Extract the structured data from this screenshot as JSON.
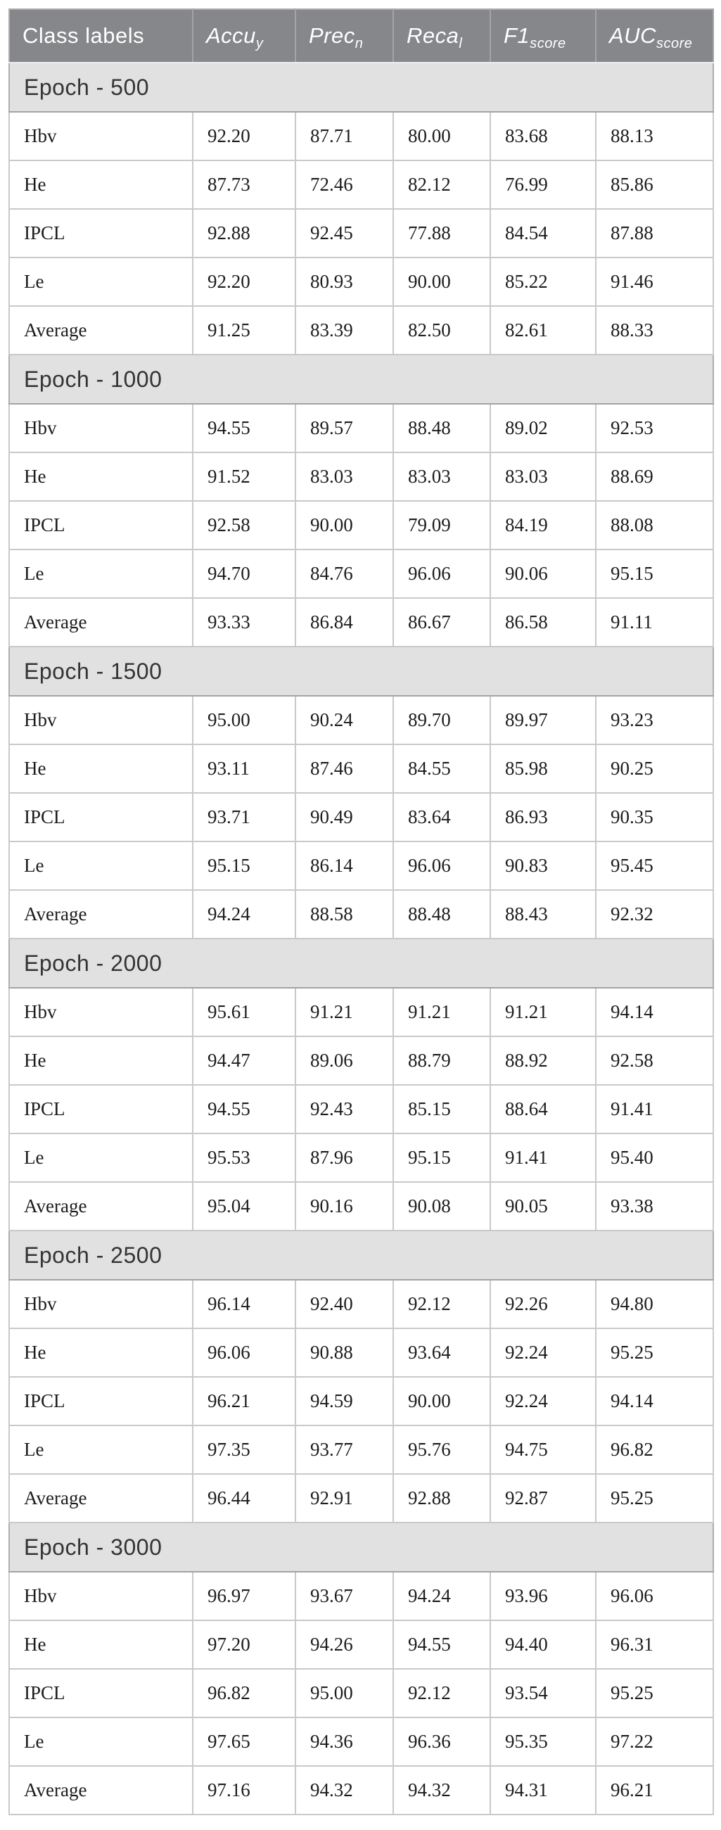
{
  "colors": {
    "header_bg": "#85878a",
    "header_text": "#ffffff",
    "section_bg": "#e1e1e1",
    "row_bg": "#ffffff",
    "border_light": "#c9c9c9",
    "border_dark": "#a3a3a3",
    "data_text": "#1c1c1c",
    "section_text": "#343434"
  },
  "table": {
    "columns": [
      {
        "label": "Class labels"
      },
      {
        "base": "Accu",
        "sub": "y"
      },
      {
        "base": "Prec",
        "sub": "n"
      },
      {
        "base": "Reca",
        "sub": "l"
      },
      {
        "base": "F1",
        "sub": "score"
      },
      {
        "base": "AUC",
        "sub": "score"
      }
    ],
    "sections": [
      {
        "title": "Epoch - 500",
        "rows": [
          {
            "label": "Hbv",
            "values": [
              "92.20",
              "87.71",
              "80.00",
              "83.68",
              "88.13"
            ]
          },
          {
            "label": "He",
            "values": [
              "87.73",
              "72.46",
              "82.12",
              "76.99",
              "85.86"
            ]
          },
          {
            "label": "IPCL",
            "values": [
              "92.88",
              "92.45",
              "77.88",
              "84.54",
              "87.88"
            ]
          },
          {
            "label": "Le",
            "values": [
              "92.20",
              "80.93",
              "90.00",
              "85.22",
              "91.46"
            ]
          },
          {
            "label": "Average",
            "values": [
              "91.25",
              "83.39",
              "82.50",
              "82.61",
              "88.33"
            ]
          }
        ]
      },
      {
        "title": "Epoch - 1000",
        "rows": [
          {
            "label": "Hbv",
            "values": [
              "94.55",
              "89.57",
              "88.48",
              "89.02",
              "92.53"
            ]
          },
          {
            "label": "He",
            "values": [
              "91.52",
              "83.03",
              "83.03",
              "83.03",
              "88.69"
            ]
          },
          {
            "label": "IPCL",
            "values": [
              "92.58",
              "90.00",
              "79.09",
              "84.19",
              "88.08"
            ]
          },
          {
            "label": "Le",
            "values": [
              "94.70",
              "84.76",
              "96.06",
              "90.06",
              "95.15"
            ]
          },
          {
            "label": "Average",
            "values": [
              "93.33",
              "86.84",
              "86.67",
              "86.58",
              "91.11"
            ]
          }
        ]
      },
      {
        "title": "Epoch - 1500",
        "rows": [
          {
            "label": "Hbv",
            "values": [
              "95.00",
              "90.24",
              "89.70",
              "89.97",
              "93.23"
            ]
          },
          {
            "label": "He",
            "values": [
              "93.11",
              "87.46",
              "84.55",
              "85.98",
              "90.25"
            ]
          },
          {
            "label": "IPCL",
            "values": [
              "93.71",
              "90.49",
              "83.64",
              "86.93",
              "90.35"
            ]
          },
          {
            "label": "Le",
            "values": [
              "95.15",
              "86.14",
              "96.06",
              "90.83",
              "95.45"
            ]
          },
          {
            "label": "Average",
            "values": [
              "94.24",
              "88.58",
              "88.48",
              "88.43",
              "92.32"
            ]
          }
        ]
      },
      {
        "title": "Epoch - 2000",
        "rows": [
          {
            "label": "Hbv",
            "values": [
              "95.61",
              "91.21",
              "91.21",
              "91.21",
              "94.14"
            ]
          },
          {
            "label": "He",
            "values": [
              "94.47",
              "89.06",
              "88.79",
              "88.92",
              "92.58"
            ]
          },
          {
            "label": "IPCL",
            "values": [
              "94.55",
              "92.43",
              "85.15",
              "88.64",
              "91.41"
            ]
          },
          {
            "label": "Le",
            "values": [
              "95.53",
              "87.96",
              "95.15",
              "91.41",
              "95.40"
            ]
          },
          {
            "label": "Average",
            "values": [
              "95.04",
              "90.16",
              "90.08",
              "90.05",
              "93.38"
            ]
          }
        ]
      },
      {
        "title": "Epoch - 2500",
        "rows": [
          {
            "label": "Hbv",
            "values": [
              "96.14",
              "92.40",
              "92.12",
              "92.26",
              "94.80"
            ]
          },
          {
            "label": "He",
            "values": [
              "96.06",
              "90.88",
              "93.64",
              "92.24",
              "95.25"
            ]
          },
          {
            "label": "IPCL",
            "values": [
              "96.21",
              "94.59",
              "90.00",
              "92.24",
              "94.14"
            ]
          },
          {
            "label": "Le",
            "values": [
              "97.35",
              "93.77",
              "95.76",
              "94.75",
              "96.82"
            ]
          },
          {
            "label": "Average",
            "values": [
              "96.44",
              "92.91",
              "92.88",
              "92.87",
              "95.25"
            ]
          }
        ]
      },
      {
        "title": "Epoch - 3000",
        "rows": [
          {
            "label": "Hbv",
            "values": [
              "96.97",
              "93.67",
              "94.24",
              "93.96",
              "96.06"
            ]
          },
          {
            "label": "He",
            "values": [
              "97.20",
              "94.26",
              "94.55",
              "94.40",
              "96.31"
            ]
          },
          {
            "label": "IPCL",
            "values": [
              "96.82",
              "95.00",
              "92.12",
              "93.54",
              "95.25"
            ]
          },
          {
            "label": "Le",
            "values": [
              "97.65",
              "94.36",
              "96.36",
              "95.35",
              "97.22"
            ]
          },
          {
            "label": "Average",
            "values": [
              "97.16",
              "94.32",
              "94.32",
              "94.31",
              "96.21"
            ]
          }
        ]
      }
    ]
  }
}
